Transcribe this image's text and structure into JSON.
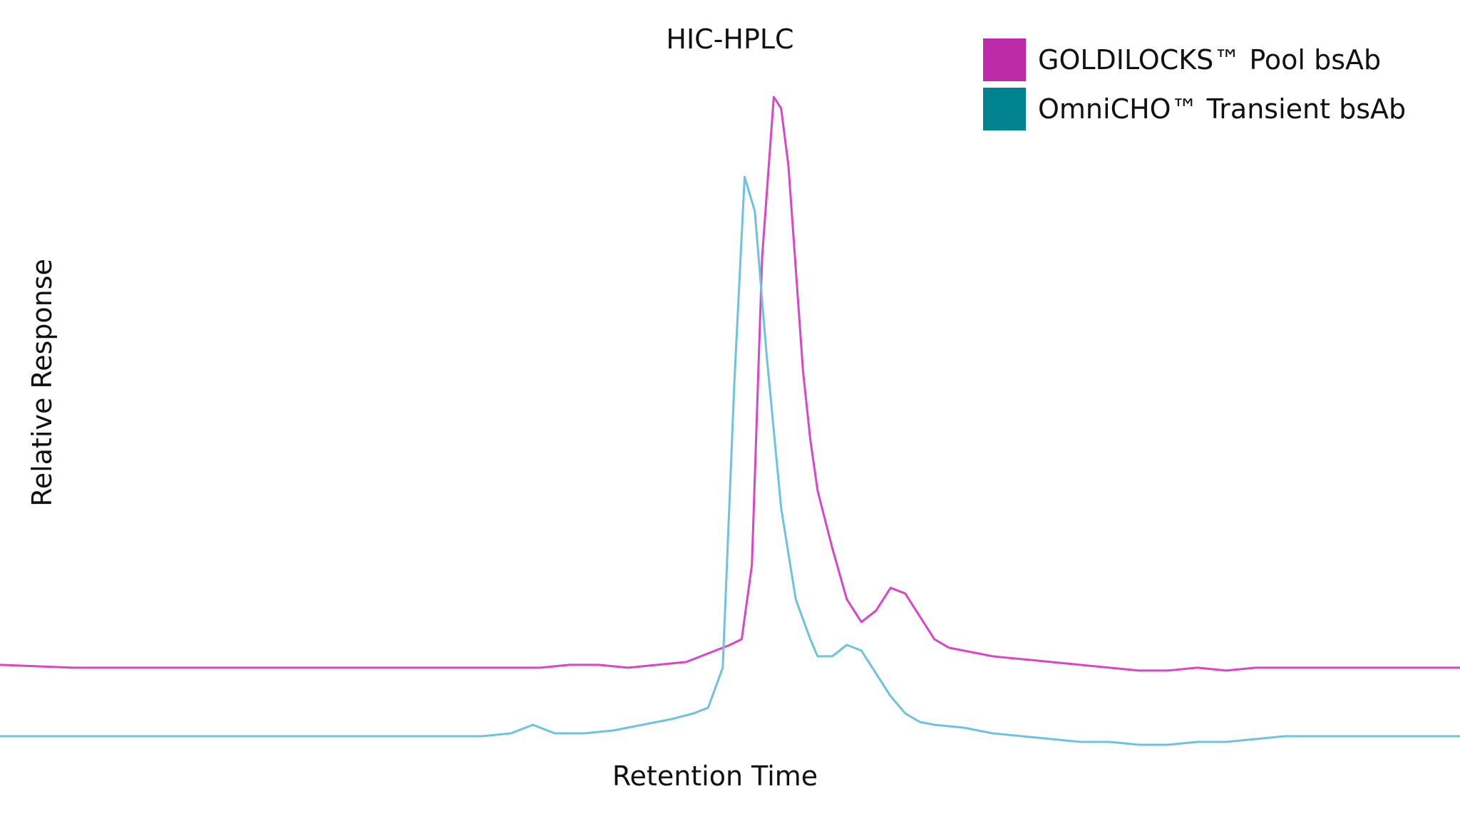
{
  "chart_data": {
    "type": "line",
    "title": "HIC-HPLC",
    "xlabel": "Retention Time",
    "ylabel": "Relative Response",
    "grid": false,
    "axes_visible": false,
    "legend_placement": "top-right",
    "xlim": [
      0,
      100
    ],
    "ylim": [
      -0.12,
      1.05
    ],
    "series": [
      {
        "name": "GOLDILOCKS™ Pool bsAb",
        "legend_color": "#BE2BA8",
        "line_color": "#DC44C8",
        "x": [
          0,
          5,
          10,
          15,
          20,
          25,
          30,
          35,
          37,
          39,
          41,
          43,
          45,
          47,
          48,
          49,
          50,
          50.8,
          51.5,
          52.2,
          53,
          53.5,
          54,
          54.5,
          55,
          55.5,
          56,
          57,
          58,
          59,
          60,
          61,
          62,
          63,
          64,
          65,
          66,
          68,
          70,
          72,
          74,
          76,
          78,
          80,
          82,
          84,
          86,
          88,
          90,
          95,
          100
        ],
        "y": [
          0.005,
          0.0,
          0.0,
          0.0,
          0.0,
          0.0,
          0.0,
          0.0,
          0.0,
          0.005,
          0.005,
          0.0,
          0.005,
          0.01,
          0.02,
          0.03,
          0.04,
          0.05,
          0.18,
          0.72,
          1.0,
          0.98,
          0.88,
          0.7,
          0.52,
          0.4,
          0.31,
          0.21,
          0.12,
          0.08,
          0.1,
          0.14,
          0.13,
          0.09,
          0.05,
          0.035,
          0.03,
          0.02,
          0.015,
          0.01,
          0.005,
          0.0,
          -0.005,
          -0.005,
          0.0,
          -0.005,
          0.0,
          0.0,
          0.0,
          0.0,
          0.0
        ]
      },
      {
        "name": "OmniCHO™ Transient bsAb",
        "legend_color": "#00828F",
        "line_color": "#6CC3DF",
        "x": [
          0,
          5,
          10,
          15,
          20,
          25,
          30,
          33,
          35,
          36.5,
          38,
          40,
          42,
          44,
          46,
          47.5,
          48.5,
          49.5,
          50.3,
          51,
          51.7,
          52.5,
          53.5,
          54.5,
          55.5,
          56,
          57,
          58,
          59,
          60,
          61,
          62,
          63,
          64,
          66,
          68,
          70,
          72,
          74,
          76,
          78,
          80,
          82,
          84,
          86,
          88,
          90,
          95,
          100
        ],
        "y": [
          -0.12,
          -0.12,
          -0.12,
          -0.12,
          -0.12,
          -0.12,
          -0.12,
          -0.12,
          -0.115,
          -0.1,
          -0.115,
          -0.115,
          -0.11,
          -0.1,
          -0.09,
          -0.08,
          -0.07,
          -0.0,
          0.5,
          0.86,
          0.8,
          0.55,
          0.28,
          0.12,
          0.05,
          0.02,
          0.02,
          0.04,
          0.03,
          -0.01,
          -0.05,
          -0.08,
          -0.095,
          -0.1,
          -0.105,
          -0.115,
          -0.12,
          -0.125,
          -0.13,
          -0.13,
          -0.135,
          -0.135,
          -0.13,
          -0.13,
          -0.125,
          -0.12,
          -0.12,
          -0.12,
          -0.12
        ]
      }
    ]
  }
}
